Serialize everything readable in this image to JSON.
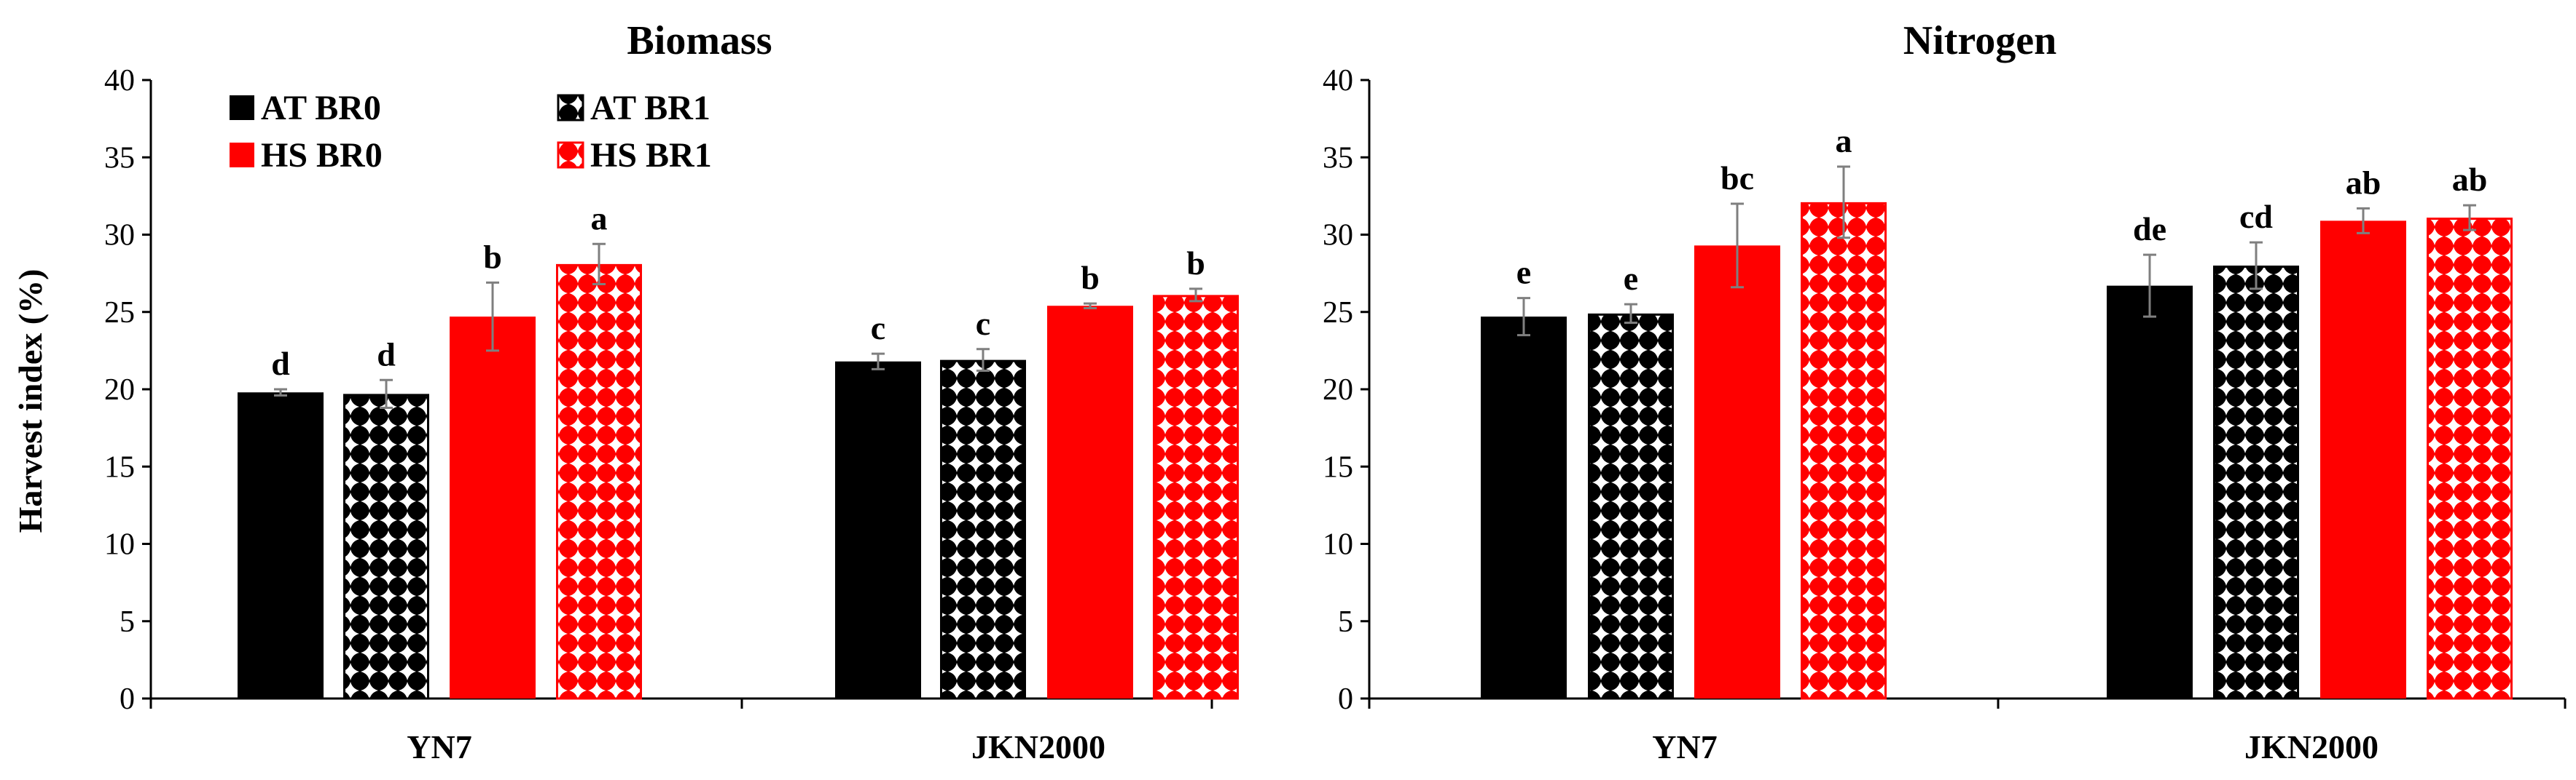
{
  "chart_data": [
    {
      "type": "bar",
      "title": "Biomass",
      "xlabel": "",
      "ylabel": "Harvest index (%)",
      "ylim": [
        0,
        40
      ],
      "yticks": [
        0,
        5,
        10,
        15,
        20,
        25,
        30,
        35,
        40
      ],
      "categories": [
        "YN7",
        "JKN2000"
      ],
      "series": [
        {
          "name": "AT BR0",
          "values": [
            19.8,
            21.8
          ],
          "errors": [
            0.2,
            0.5
          ],
          "labels": [
            "d",
            "c"
          ]
        },
        {
          "name": "AT BR1",
          "values": [
            19.7,
            21.9
          ],
          "errors": [
            0.9,
            0.7
          ],
          "labels": [
            "d",
            "c"
          ]
        },
        {
          "name": "HS BR0",
          "values": [
            24.7,
            25.4
          ],
          "errors": [
            2.2,
            0.15
          ],
          "labels": [
            "b",
            "b"
          ]
        },
        {
          "name": "HS BR1",
          "values": [
            28.1,
            26.1
          ],
          "errors": [
            1.3,
            0.4
          ],
          "labels": [
            "a",
            "b"
          ]
        }
      ],
      "legend": "top-left"
    },
    {
      "type": "bar",
      "title": "Nitrogen",
      "xlabel": "",
      "ylabel": "",
      "ylim": [
        0,
        40
      ],
      "yticks": [
        0,
        5,
        10,
        15,
        20,
        25,
        30,
        35,
        40
      ],
      "categories": [
        "YN7",
        "JKN2000"
      ],
      "series": [
        {
          "name": "AT BR0",
          "values": [
            24.7,
            26.7
          ],
          "errors": [
            1.2,
            2.0
          ],
          "labels": [
            "e",
            "de"
          ]
        },
        {
          "name": "AT BR1",
          "values": [
            24.9,
            28.0
          ],
          "errors": [
            0.6,
            1.5
          ],
          "labels": [
            "e",
            "cd"
          ]
        },
        {
          "name": "HS BR0",
          "values": [
            29.3,
            30.9
          ],
          "errors": [
            2.7,
            0.8
          ],
          "labels": [
            "bc",
            "ab"
          ]
        },
        {
          "name": "HS BR1",
          "values": [
            32.1,
            31.1
          ],
          "errors": [
            2.3,
            0.8
          ],
          "labels": [
            "a",
            "ab"
          ]
        }
      ]
    }
  ],
  "colors": {
    "at": "#000000",
    "hs": "#ff0000",
    "error": "#7f7f7f"
  }
}
